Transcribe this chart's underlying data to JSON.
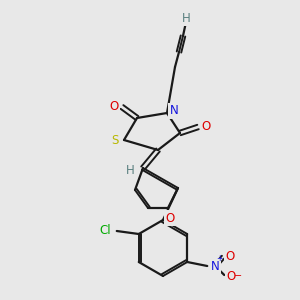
{
  "bg_color": "#e8e8e8",
  "colors": {
    "bond": "#1a1a1a",
    "H": "#5a8080",
    "O": "#dd0000",
    "N": "#1414dd",
    "S": "#b8b800",
    "Cl": "#00aa00"
  },
  "lw": 1.6,
  "dlw": 1.4,
  "fs": 8.5
}
